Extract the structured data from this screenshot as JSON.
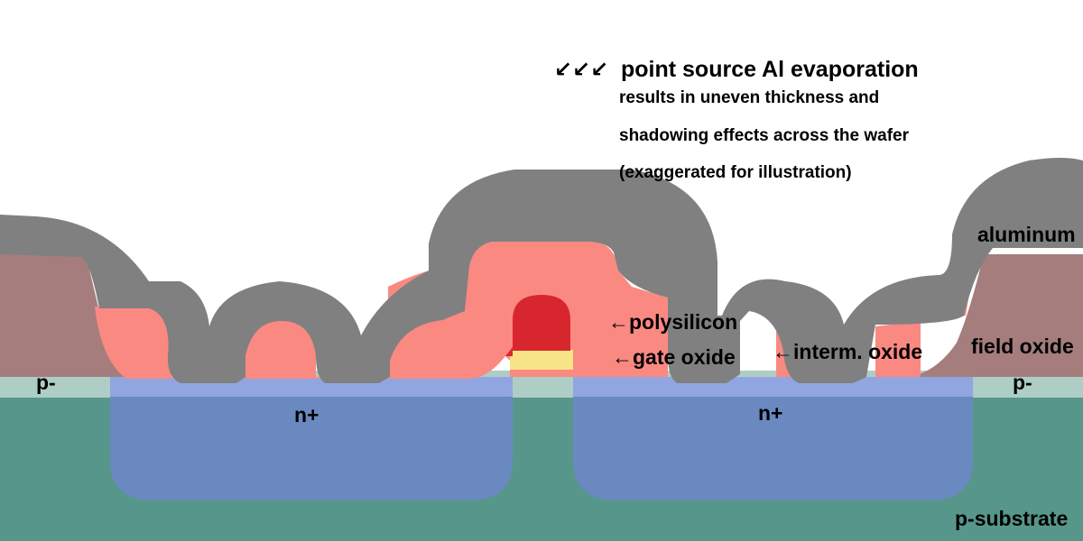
{
  "annotation": {
    "arrows": "↙↙↙",
    "headline": "point source Al evaporation",
    "lines": [
      "results in uneven thickness and",
      "shadowing effects across the wafer",
      "(exaggerated for illustration)"
    ]
  },
  "labels": {
    "aluminum": "aluminum",
    "field_oxide": "field oxide",
    "p_minus_left": "p-",
    "p_minus_right": "p-",
    "n_plus_left": "n+",
    "n_plus_right": "n+",
    "p_substrate": "p-substrate",
    "polysilicon": "←polysilicon",
    "gate_oxide": "←gate oxide",
    "interm_oxide": "←interm. oxide"
  },
  "colors": {
    "aluminum": "#808080",
    "intermediate_oxide": "#fa8982",
    "field_oxide": "#a57d7d",
    "p_minus": "#aecdc4",
    "n_plus": "#6a89c0",
    "n_plus_surface": "#91a6e0",
    "p_substrate": "#57968a",
    "polysilicon": "#d8262f",
    "gate_oxide": "#f7e486"
  }
}
